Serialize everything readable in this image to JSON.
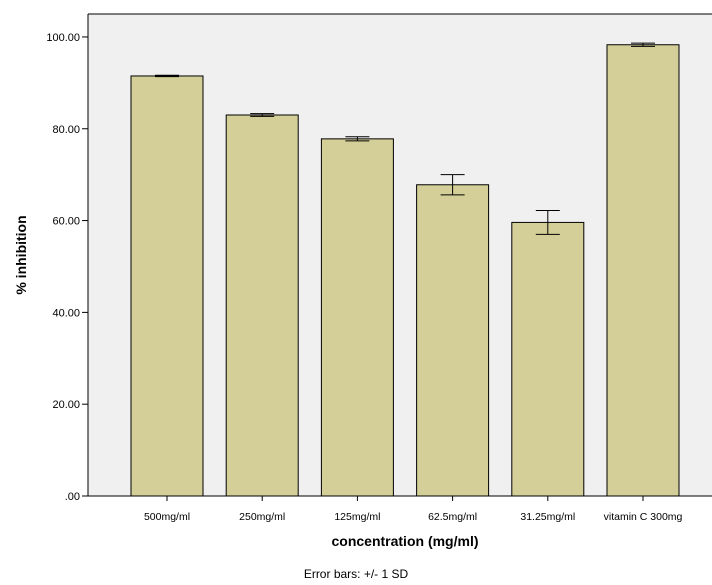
{
  "chart_data": {
    "type": "bar",
    "categories": [
      "500mg/ml",
      "250mg/ml",
      "125mg/ml",
      "62.5mg/ml",
      "31.25mg/ml",
      "vitamin C 300mg"
    ],
    "values": [
      91.5,
      83.0,
      77.8,
      67.8,
      59.6,
      98.3
    ],
    "error_sd": [
      0.15,
      0.3,
      0.45,
      2.2,
      2.6,
      0.35
    ],
    "xlabel": "concentration (mg/ml)",
    "ylabel": "% inhibition",
    "ylim": [
      0,
      105
    ],
    "yticks": [
      0,
      20,
      40,
      60,
      80,
      100
    ],
    "ytick_labels": [
      ".00",
      "20.00",
      "40.00",
      "60.00",
      "80.00",
      "100.00"
    ],
    "note": "Error bars: +/- 1 SD",
    "grid": false,
    "colors": {
      "bar": "#d4cf98",
      "plot_bg": "#f0f0f0",
      "outline": "#000000"
    }
  }
}
